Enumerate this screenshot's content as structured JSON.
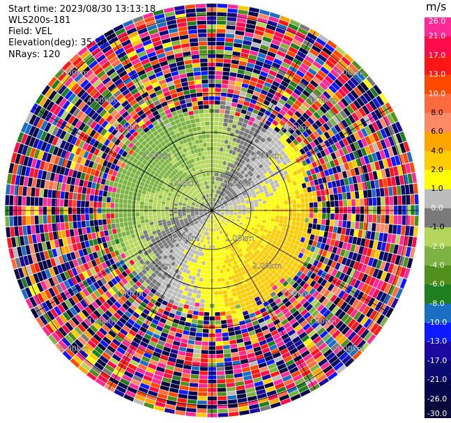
{
  "header": {
    "start_time": "Start time: 2023/08/30 13:13:18",
    "instrument": "WLS200s-181",
    "field": "Field: VEL",
    "elevation": "Elevation(deg): 35.30",
    "nrays": "NRays: 120"
  },
  "colorbar": {
    "unit": "m/s",
    "ticks": [
      "26.0",
      "21.0",
      "17.0",
      "13.0",
      "10.0",
      "8.0",
      "6.0",
      "4.0",
      "2.0",
      "1.0",
      "0.0",
      "-1.0",
      "-2.0",
      "-4.0",
      "-6.0",
      "-8.0",
      "-10.0",
      "-13.0",
      "-17.0",
      "-21.0",
      "-26.0",
      "-30.0"
    ],
    "colors": [
      "#ff2a95",
      "#ff0a4a",
      "#ff1616",
      "#ff4800",
      "#ff6a3f",
      "#ff8a65",
      "#ffa500",
      "#ffcc00",
      "#ffff00",
      "#bcbcbc",
      "#7a7a7a",
      "#b4d65a",
      "#7cb342",
      "#4f8f1a",
      "#1f7f1f",
      "#1a6fc2",
      "#0d1aff",
      "#1a0aa0",
      "#0a0a70",
      "#06064c",
      "#0a0a3a"
    ]
  },
  "chart_data": {
    "type": "ppi",
    "field": "VEL",
    "units": "m/s",
    "nrays": 120,
    "elevation_deg": 35.3,
    "range_rings_km": [
      1.0,
      2.0,
      3.0,
      4.0,
      5.0
    ],
    "ring_labels": [
      "1.00km",
      "2.00km",
      "3.00km",
      "4.00km",
      "5.00km"
    ],
    "max_range_km": 5.3,
    "pattern": {
      "clean_radius_km": 2.65,
      "description_free": true,
      "wind_from_deg": 155,
      "amplitude_ms": 3.2
    }
  }
}
